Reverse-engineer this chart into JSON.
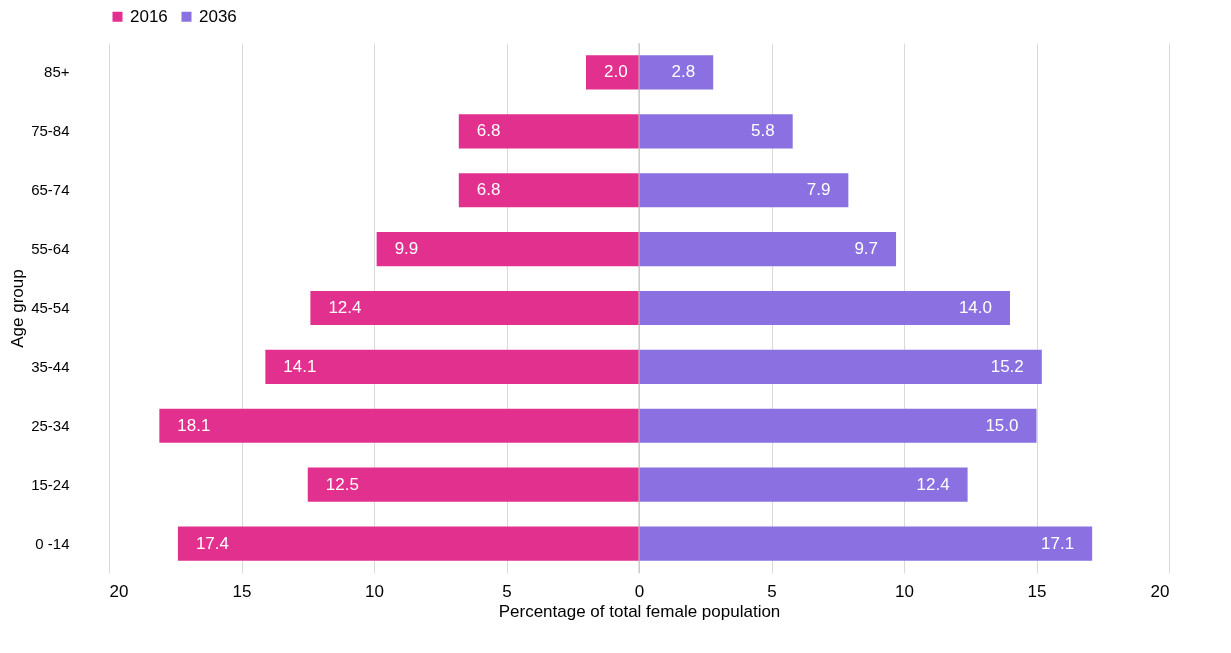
{
  "chart_data": {
    "type": "bar",
    "orientation": "horizontal",
    "xlabel": "Percentage of total female population",
    "ylabel": "Age group",
    "categories": [
      "85+",
      "75-84",
      "65-74",
      "55-64",
      "45-54",
      "35-44",
      "25-34",
      "15-24",
      "0 -14"
    ],
    "series": [
      {
        "name": "2016",
        "color": "#e2308e",
        "values": [
          2.0,
          6.8,
          6.8,
          9.9,
          12.4,
          14.1,
          18.1,
          12.5,
          17.4
        ],
        "base": [
          -2.0,
          -6.8,
          -6.8,
          -9.9,
          -12.4,
          -14.1,
          -18.1,
          -12.5,
          -17.4
        ],
        "value_labels": [
          "2.0",
          "6.8",
          "6.8",
          "9.9",
          "12.4",
          "14.1",
          "18.1",
          "12.5",
          "17.4"
        ]
      },
      {
        "name": "2036",
        "color": "#8a70e1",
        "values": [
          2.8,
          5.8,
          7.9,
          9.7,
          14.0,
          15.2,
          15.0,
          12.4,
          17.1
        ],
        "value_labels": [
          "2.8",
          "5.8",
          "7.9",
          "9.7",
          "14.0",
          "15.2",
          "15.0",
          "12.4",
          "17.1"
        ]
      }
    ],
    "xlim": [
      -20,
      20
    ],
    "xticks": [
      {
        "value": -20,
        "label": "20"
      },
      {
        "value": -15,
        "label": "15"
      },
      {
        "value": -10,
        "label": "10"
      },
      {
        "value": -5,
        "label": "5"
      },
      0,
      5,
      10,
      15,
      20
    ],
    "grid": "x",
    "legend": "top"
  }
}
